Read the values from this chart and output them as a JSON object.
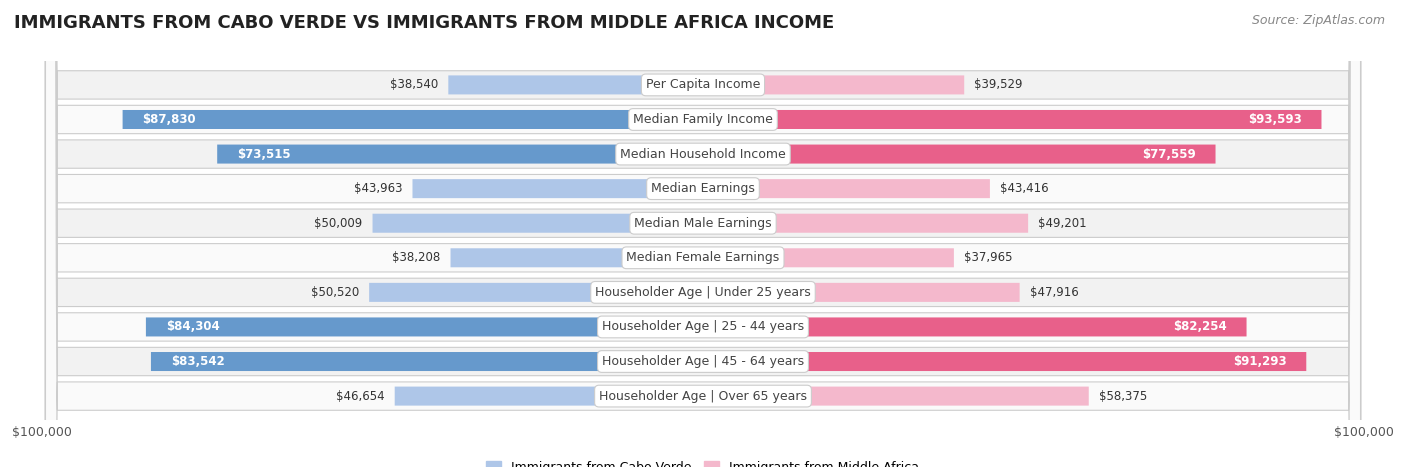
{
  "title": "IMMIGRANTS FROM CABO VERDE VS IMMIGRANTS FROM MIDDLE AFRICA INCOME",
  "source": "Source: ZipAtlas.com",
  "categories": [
    "Per Capita Income",
    "Median Family Income",
    "Median Household Income",
    "Median Earnings",
    "Median Male Earnings",
    "Median Female Earnings",
    "Householder Age | Under 25 years",
    "Householder Age | 25 - 44 years",
    "Householder Age | 45 - 64 years",
    "Householder Age | Over 65 years"
  ],
  "cabo_verde": [
    38540,
    87830,
    73515,
    43963,
    50009,
    38208,
    50520,
    84304,
    83542,
    46654
  ],
  "middle_africa": [
    39529,
    93593,
    77559,
    43416,
    49201,
    37965,
    47916,
    82254,
    91293,
    58375
  ],
  "max_val": 100000,
  "cabo_verde_color_light": "#aec6e8",
  "cabo_verde_color_dark": "#6699cc",
  "middle_africa_color_light": "#f4b8cc",
  "middle_africa_color_dark": "#e8608a",
  "row_bg_odd": "#f2f2f2",
  "row_bg_even": "#fafafa",
  "title_fontsize": 13,
  "source_fontsize": 9,
  "bar_label_fontsize": 8.5,
  "category_fontsize": 9,
  "axis_label_fontsize": 9,
  "large_threshold": 60000
}
